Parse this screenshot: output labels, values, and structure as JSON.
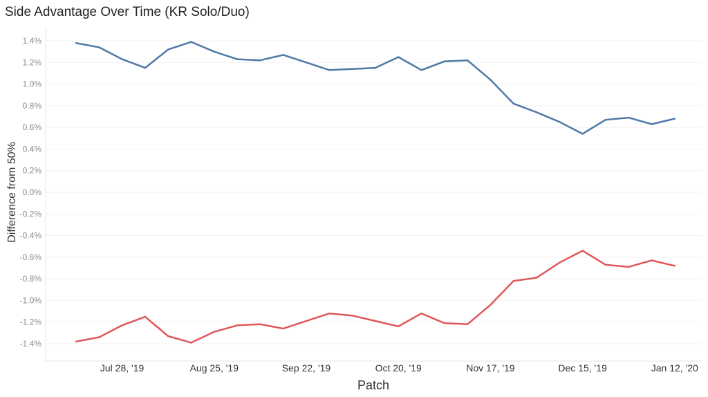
{
  "chart_data": {
    "type": "line",
    "title": "Side Advantage Over Time (KR Solo/Duo)",
    "xlabel": "Patch",
    "ylabel": "Difference from 50%",
    "ylim": [
      -1.5,
      1.5
    ],
    "yticks": [
      1.4,
      1.2,
      1.0,
      0.8,
      0.6,
      0.4,
      0.2,
      0.0,
      -0.2,
      -0.4,
      -0.6,
      -0.8,
      -1.0,
      -1.2,
      -1.4
    ],
    "ytick_labels": [
      "1.4%",
      "1.2%",
      "1.0%",
      "0.8%",
      "0.6%",
      "0.4%",
      "0.2%",
      "0.0%",
      "-0.2%",
      "-0.4%",
      "-0.6%",
      "-0.8%",
      "-1.0%",
      "-1.2%",
      "-1.4%"
    ],
    "x_count": 27,
    "xtick_positions": [
      2,
      6,
      10,
      14,
      18,
      22,
      26
    ],
    "xtick_labels": [
      "Jul 28, '19",
      "Aug 25, '19",
      "Sep 22, '19",
      "Oct 20, '19",
      "Nov 17, '19",
      "Dec 15, '19",
      "Jan 12, '20"
    ],
    "grid": true,
    "series": [
      {
        "color": "#4e79a7",
        "values": [
          1.38,
          1.34,
          1.23,
          1.15,
          1.32,
          1.39,
          1.3,
          1.23,
          1.22,
          1.27,
          1.2,
          1.13,
          1.14,
          1.15,
          1.25,
          1.13,
          1.21,
          1.22,
          1.04,
          0.82,
          0.74,
          0.65,
          0.54,
          0.67,
          0.69,
          0.63,
          0.68
        ]
      },
      {
        "color": "#e15759",
        "values": [
          -1.38,
          -1.34,
          -1.23,
          -1.15,
          -1.33,
          -1.39,
          -1.29,
          -1.23,
          -1.22,
          -1.26,
          -1.19,
          -1.12,
          -1.14,
          -1.19,
          -1.24,
          -1.12,
          -1.21,
          -1.22,
          -1.04,
          -0.82,
          -0.79,
          -0.65,
          -0.54,
          -0.67,
          -0.69,
          -0.63,
          -0.68
        ]
      }
    ]
  }
}
